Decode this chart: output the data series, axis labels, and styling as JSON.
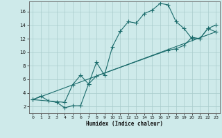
{
  "xlabel": "Humidex (Indice chaleur)",
  "bg_color": "#ceeaea",
  "grid_color": "#aacccc",
  "line_color": "#1a6b6b",
  "xlim": [
    -0.5,
    23.5
  ],
  "ylim": [
    1.0,
    17.5
  ],
  "xticks": [
    0,
    1,
    2,
    3,
    4,
    5,
    6,
    7,
    8,
    9,
    10,
    11,
    12,
    13,
    14,
    15,
    16,
    17,
    18,
    19,
    20,
    21,
    22,
    23
  ],
  "yticks": [
    2,
    4,
    6,
    8,
    10,
    12,
    14,
    16
  ],
  "line1_x": [
    0,
    1,
    2,
    3,
    4,
    5,
    6,
    7,
    8,
    9,
    10,
    11,
    12,
    13,
    14,
    15,
    16,
    17,
    18,
    19,
    20,
    21,
    22,
    23
  ],
  "line1_y": [
    3.0,
    3.5,
    2.8,
    2.6,
    1.8,
    2.1,
    2.1,
    5.3,
    8.5,
    6.6,
    10.8,
    13.1,
    14.5,
    14.3,
    15.7,
    16.2,
    17.2,
    17.0,
    14.5,
    13.5,
    12.0,
    12.0,
    13.5,
    14.0
  ],
  "line2_x": [
    0,
    4,
    5,
    6,
    7,
    8,
    17,
    18,
    19,
    20,
    21,
    22,
    23
  ],
  "line2_y": [
    3.0,
    2.6,
    5.2,
    6.6,
    5.3,
    6.5,
    10.3,
    10.5,
    11.0,
    12.2,
    12.0,
    13.5,
    13.0
  ],
  "line3_x": [
    0,
    23
  ],
  "line3_y": [
    3.0,
    13.0
  ]
}
